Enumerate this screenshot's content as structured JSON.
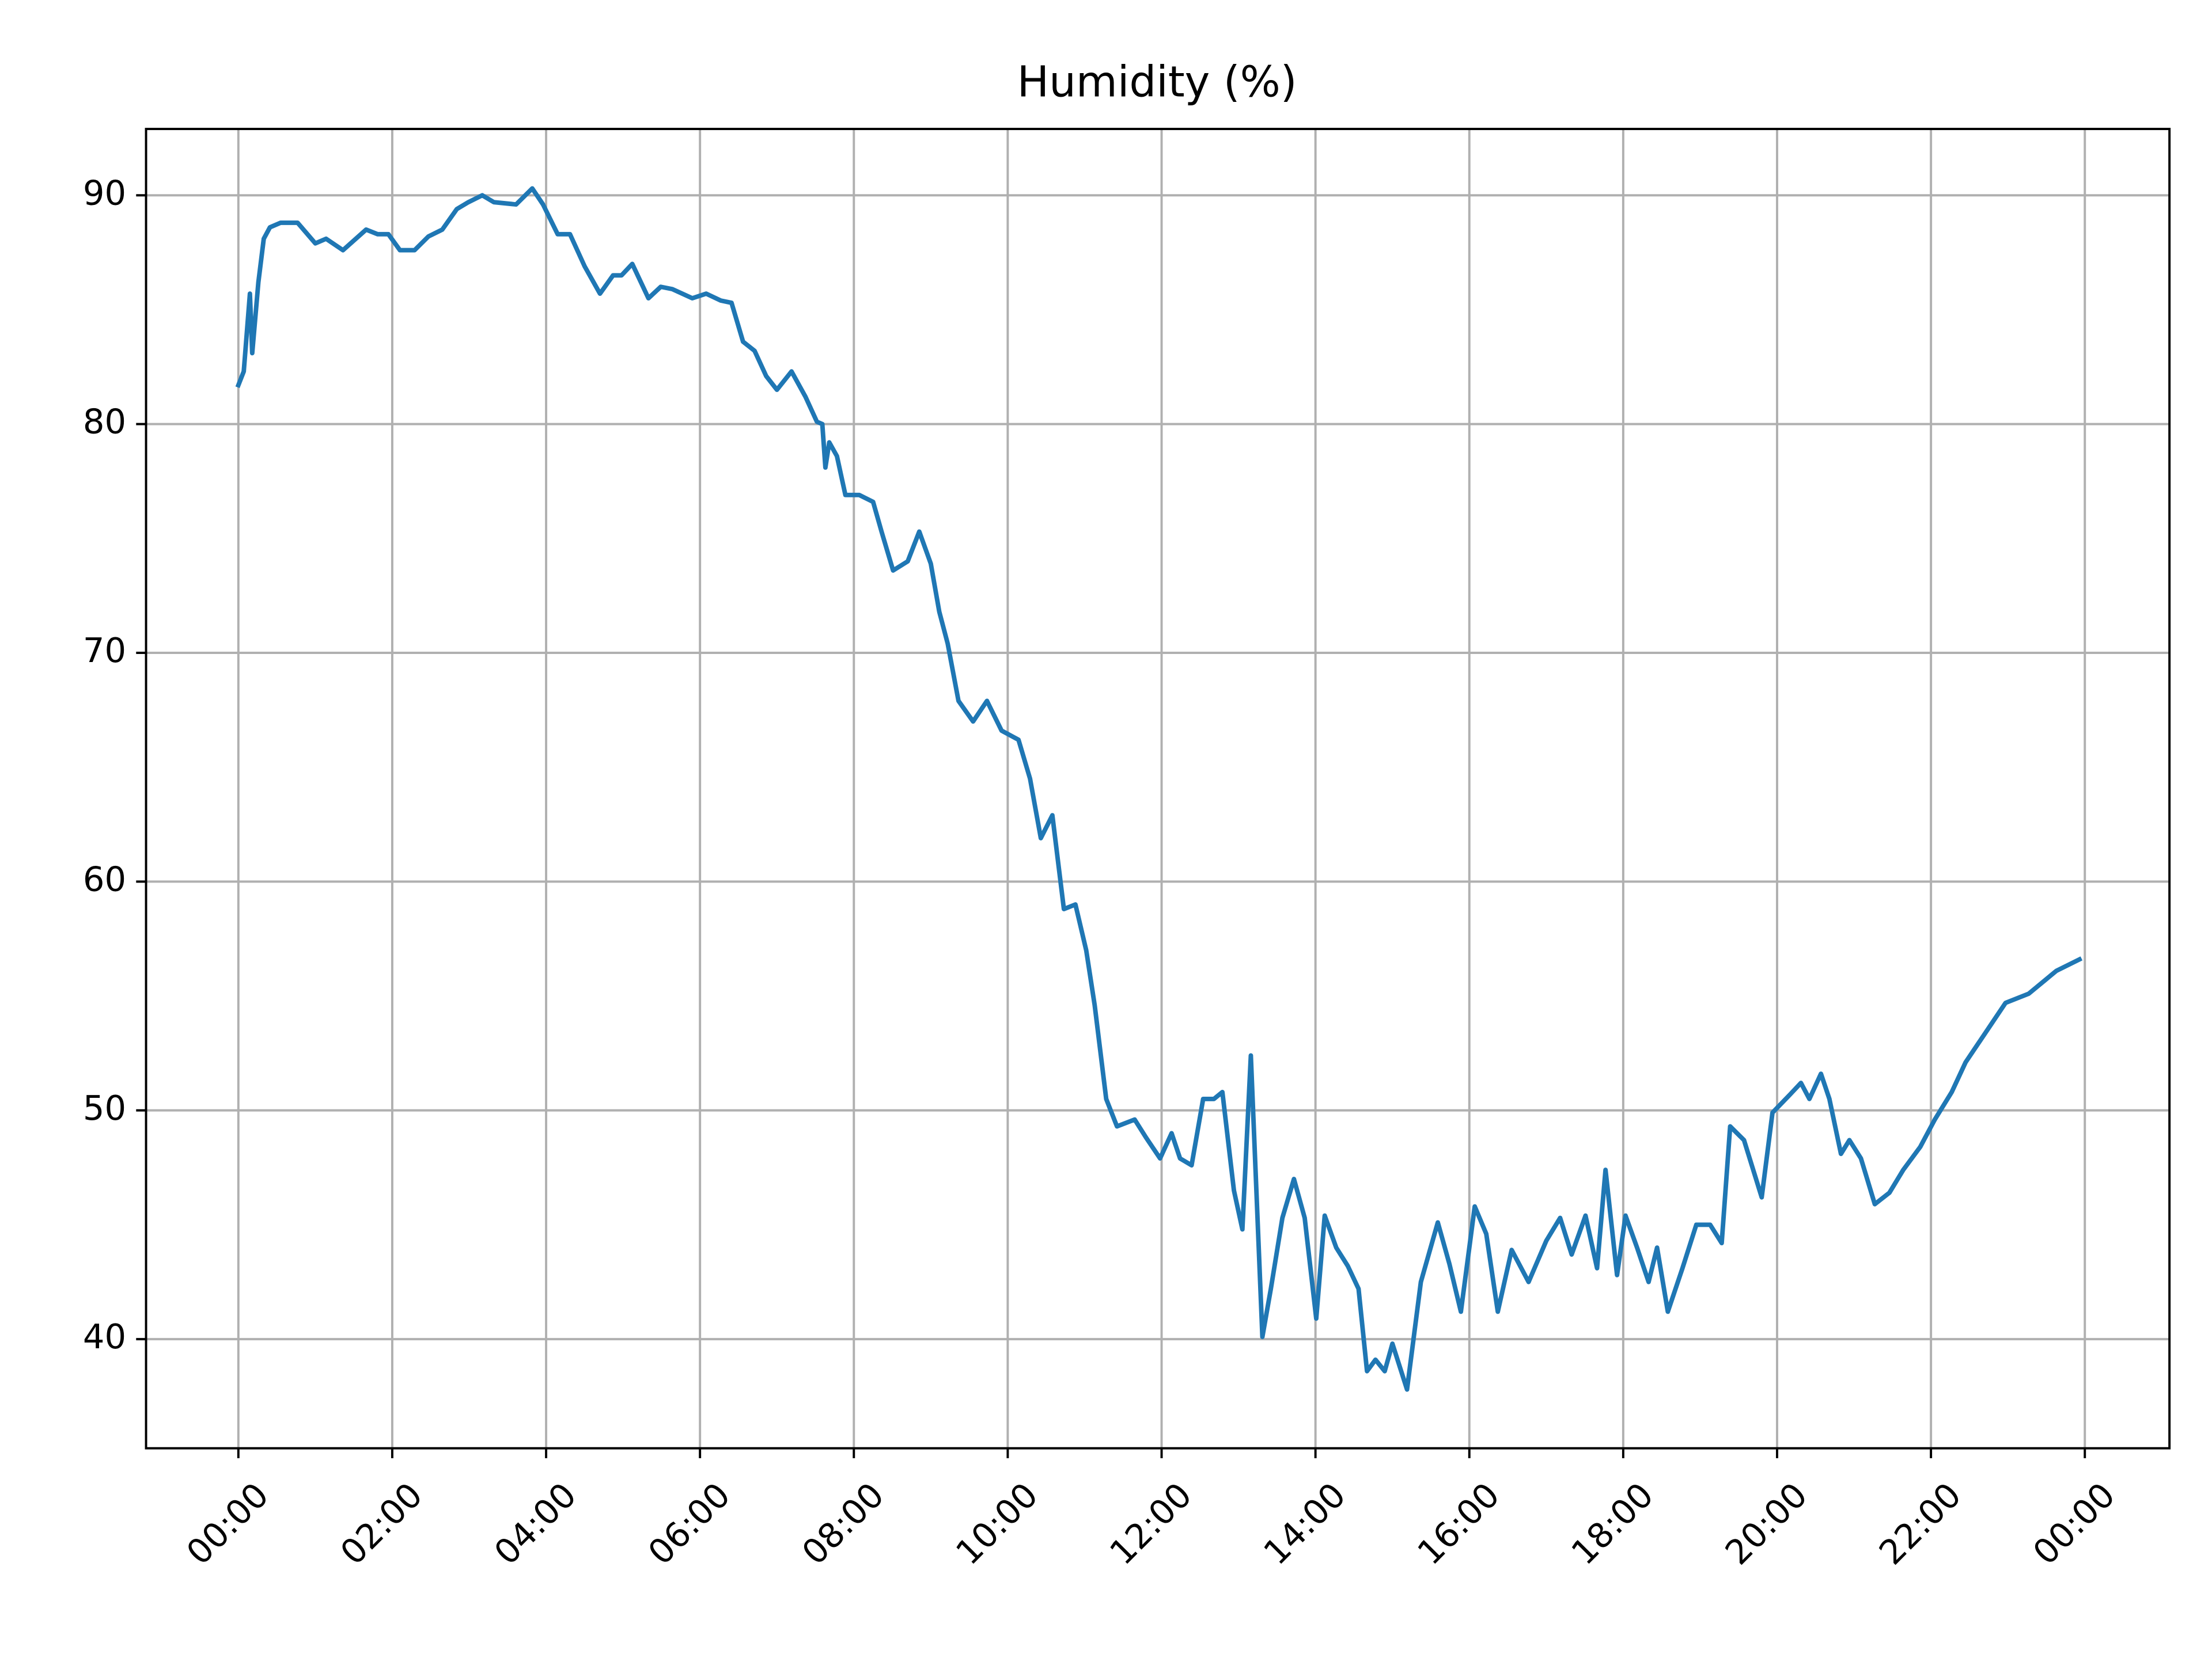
{
  "chart_data": {
    "type": "line",
    "title": "Humidity (%)",
    "color": "#1f77b4",
    "grid": true,
    "x": [
      0,
      0.07,
      0.15,
      0.18,
      0.26,
      0.33,
      0.41,
      0.55,
      0.77,
      1.0,
      1.14,
      1.36,
      1.66,
      1.81,
      1.95,
      2.1,
      2.29,
      2.47,
      2.65,
      2.84,
      2.99,
      3.17,
      3.32,
      3.61,
      3.82,
      3.96,
      4.15,
      4.31,
      4.5,
      4.7,
      4.87,
      4.98,
      5.12,
      5.33,
      5.49,
      5.64,
      5.9,
      6.08,
      6.27,
      6.41,
      6.56,
      6.71,
      6.86,
      7.0,
      7.19,
      7.37,
      7.52,
      7.59,
      7.63,
      7.68,
      7.78,
      7.89,
      8.07,
      8.25,
      8.36,
      8.51,
      8.7,
      8.85,
      9.0,
      9.11,
      9.22,
      9.36,
      9.55,
      9.73,
      9.92,
      10.14,
      10.29,
      10.43,
      10.58,
      10.73,
      10.88,
      11.02,
      11.13,
      11.28,
      11.42,
      11.65,
      11.8,
      11.98,
      12.13,
      12.24,
      12.39,
      12.54,
      12.68,
      12.79,
      12.94,
      13.05,
      13.16,
      13.31,
      13.42,
      13.57,
      13.72,
      13.86,
      14.01,
      14.12,
      14.27,
      14.42,
      14.56,
      14.67,
      14.78,
      14.9,
      15.0,
      15.19,
      15.37,
      15.59,
      15.74,
      15.89,
      16.07,
      16.22,
      16.37,
      16.55,
      16.77,
      17.0,
      17.18,
      17.33,
      17.51,
      17.66,
      17.77,
      17.92,
      18.03,
      18.18,
      18.33,
      18.44,
      18.58,
      18.77,
      18.95,
      19.13,
      19.28,
      19.39,
      19.57,
      19.8,
      19.94,
      20.17,
      20.31,
      20.42,
      20.57,
      20.68,
      20.83,
      20.94,
      21.09,
      21.27,
      21.46,
      21.64,
      21.86,
      22.05,
      22.27,
      22.45,
      22.71,
      22.97,
      23.27,
      23.63,
      23.93
    ],
    "values": [
      81.7,
      82.3,
      85.7,
      83.1,
      86.2,
      88.1,
      88.6,
      88.8,
      88.8,
      87.9,
      88.1,
      87.6,
      88.5,
      88.3,
      88.3,
      87.6,
      87.6,
      88.2,
      88.5,
      89.4,
      89.7,
      90.0,
      89.7,
      89.6,
      90.3,
      89.6,
      88.3,
      88.3,
      86.9,
      85.7,
      86.5,
      86.5,
      87.0,
      85.5,
      86.0,
      85.9,
      85.5,
      85.7,
      85.4,
      85.3,
      83.6,
      83.2,
      82.1,
      81.5,
      82.3,
      81.2,
      80.1,
      80.0,
      78.1,
      79.2,
      78.6,
      76.9,
      76.9,
      76.6,
      75.3,
      73.6,
      74.0,
      75.3,
      73.9,
      71.8,
      70.4,
      67.9,
      67.0,
      67.9,
      66.6,
      66.2,
      64.5,
      61.9,
      62.9,
      58.8,
      59.0,
      57.0,
      54.6,
      50.5,
      49.3,
      49.6,
      48.8,
      47.9,
      49.0,
      47.9,
      47.6,
      50.5,
      50.5,
      50.8,
      46.5,
      44.8,
      52.4,
      40.1,
      42.2,
      45.3,
      47.0,
      45.3,
      40.9,
      45.4,
      44.0,
      43.2,
      42.2,
      38.6,
      39.1,
      38.6,
      39.8,
      37.8,
      42.5,
      45.1,
      43.3,
      41.2,
      45.8,
      44.6,
      41.2,
      43.9,
      42.5,
      44.3,
      45.3,
      43.7,
      45.4,
      43.1,
      47.4,
      42.8,
      45.4,
      44.0,
      42.5,
      44.0,
      41.2,
      43.1,
      45.0,
      45.0,
      44.2,
      49.3,
      48.7,
      46.2,
      49.9,
      50.7,
      51.2,
      50.5,
      51.6,
      50.5,
      48.1,
      48.7,
      47.9,
      45.9,
      46.4,
      47.4,
      48.4,
      49.6,
      50.8,
      52.1,
      53.4,
      54.7,
      55.1,
      56.1,
      56.6
    ],
    "xlim": [
      -1.2,
      25.1
    ],
    "xticks": [
      {
        "value": 0,
        "label": "00:00"
      },
      {
        "value": 2,
        "label": "02:00"
      },
      {
        "value": 4,
        "label": "04:00"
      },
      {
        "value": 6,
        "label": "06:00"
      },
      {
        "value": 8,
        "label": "08:00"
      },
      {
        "value": 10,
        "label": "10:00"
      },
      {
        "value": 12,
        "label": "12:00"
      },
      {
        "value": 14,
        "label": "14:00"
      },
      {
        "value": 16,
        "label": "16:00"
      },
      {
        "value": 18,
        "label": "18:00"
      },
      {
        "value": 20,
        "label": "20:00"
      },
      {
        "value": 22,
        "label": "22:00"
      },
      {
        "value": 24,
        "label": "00:00"
      }
    ],
    "ylim": [
      35.23,
      92.9
    ],
    "yticks": [
      40,
      50,
      60,
      70,
      80,
      90
    ]
  }
}
